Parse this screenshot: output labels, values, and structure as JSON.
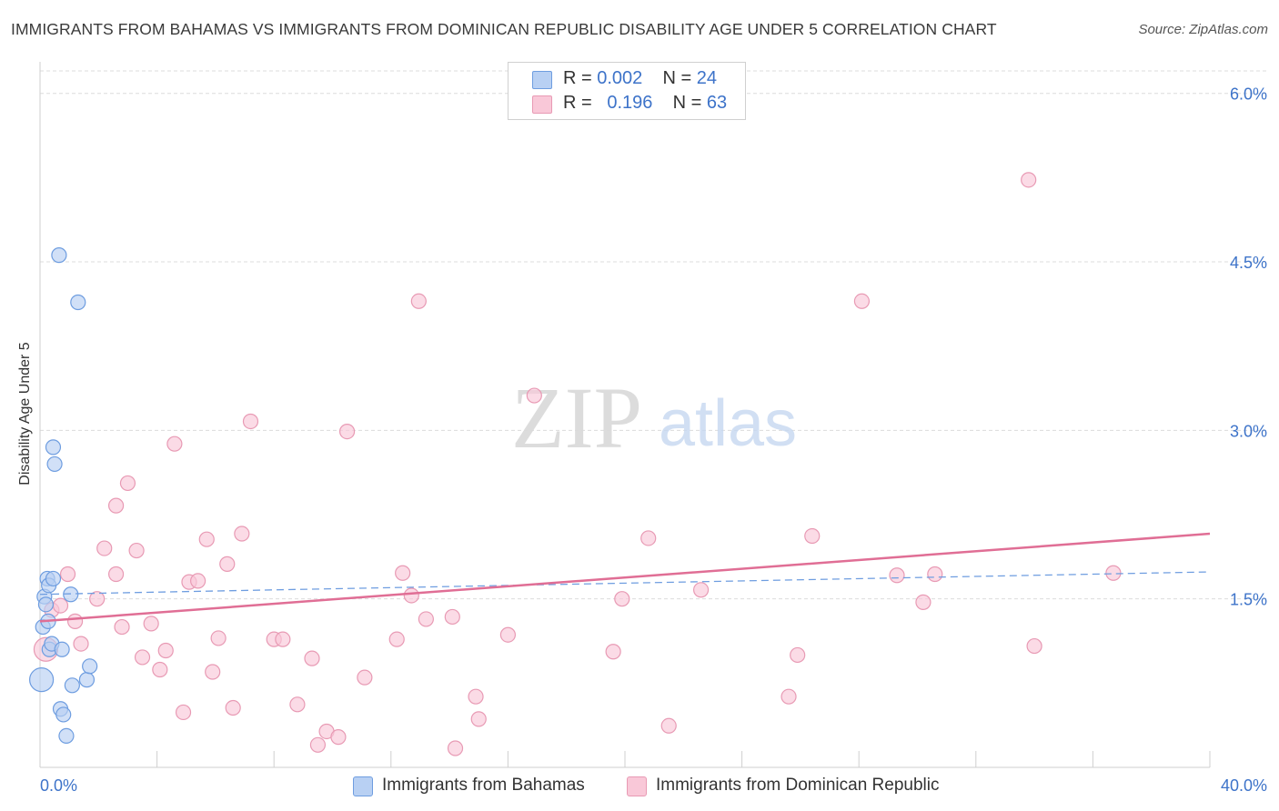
{
  "title": "IMMIGRANTS FROM BAHAMAS VS IMMIGRANTS FROM DOMINICAN REPUBLIC DISABILITY AGE UNDER 5 CORRELATION CHART",
  "source": "Source: ZipAtlas.com",
  "watermark": {
    "zip": "ZIP",
    "atlas": "atlas"
  },
  "legend": {
    "rows": [
      {
        "r_label": "R = ",
        "r_value": "0.002",
        "n_label": "N = ",
        "n_value": "24"
      },
      {
        "r_label": "R = ",
        "r_value": "0.196",
        "n_label": "N = ",
        "n_value": "63"
      }
    ]
  },
  "colors": {
    "bahamas_fill": "#b8d0f3",
    "bahamas_stroke": "#6e9de0",
    "bahamas_line": "#6e9de0",
    "dr_fill": "#f9c8d8",
    "dr_stroke": "#e89ab4",
    "dr_line": "#e06e95",
    "axis_text": "#3d73c9",
    "grid": "#dcdcdc"
  },
  "chart_data": {
    "type": "scatter",
    "title": "IMMIGRANTS FROM BAHAMAS VS IMMIGRANTS FROM DOMINICAN REPUBLIC DISABILITY AGE UNDER 5 CORRELATION CHART",
    "xlabel": "",
    "ylabel": "Disability Age Under 5",
    "xlim": [
      0,
      40
    ],
    "ylim": [
      0,
      6.2
    ],
    "x_tick_labels": [
      "0.0%",
      "40.0%"
    ],
    "y_ticks": [
      1.5,
      3.0,
      4.5,
      6.0
    ],
    "y_tick_labels": [
      "1.5%",
      "3.0%",
      "4.5%",
      "6.0%"
    ],
    "grid": true,
    "legend_position": "top-center",
    "series": [
      {
        "name": "Immigrants from Bahamas",
        "R": 0.002,
        "N": 24,
        "trend": {
          "x": [
            0,
            40
          ],
          "y": [
            1.54,
            1.74
          ],
          "style": "dashed"
        },
        "points": [
          {
            "x": 0.05,
            "y": 0.78,
            "big": true
          },
          {
            "x": 0.1,
            "y": 1.25
          },
          {
            "x": 0.15,
            "y": 1.52
          },
          {
            "x": 0.2,
            "y": 1.45
          },
          {
            "x": 0.25,
            "y": 1.68
          },
          {
            "x": 0.28,
            "y": 1.3
          },
          {
            "x": 0.3,
            "y": 1.62
          },
          {
            "x": 0.32,
            "y": 1.05
          },
          {
            "x": 0.4,
            "y": 1.1
          },
          {
            "x": 0.45,
            "y": 1.68
          },
          {
            "x": 0.45,
            "y": 2.85
          },
          {
            "x": 0.5,
            "y": 2.7
          },
          {
            "x": 0.65,
            "y": 4.56
          },
          {
            "x": 0.7,
            "y": 0.52
          },
          {
            "x": 0.75,
            "y": 1.05
          },
          {
            "x": 0.8,
            "y": 0.47
          },
          {
            "x": 0.9,
            "y": 0.28
          },
          {
            "x": 1.1,
            "y": 0.73
          },
          {
            "x": 1.05,
            "y": 1.54
          },
          {
            "x": 1.3,
            "y": 4.14
          },
          {
            "x": 1.6,
            "y": 0.78
          },
          {
            "x": 1.7,
            "y": 0.9
          }
        ]
      },
      {
        "name": "Immigrants from Dominican Republic",
        "R": 0.196,
        "N": 63,
        "trend": {
          "x": [
            0,
            40
          ],
          "y": [
            1.3,
            2.08
          ],
          "style": "solid"
        },
        "points": [
          {
            "x": 0.2,
            "y": 1.05,
            "big": true
          },
          {
            "x": 0.4,
            "y": 1.4
          },
          {
            "x": 0.7,
            "y": 1.44
          },
          {
            "x": 0.95,
            "y": 1.72
          },
          {
            "x": 1.2,
            "y": 1.3
          },
          {
            "x": 1.4,
            "y": 1.1
          },
          {
            "x": 1.95,
            "y": 1.5
          },
          {
            "x": 2.2,
            "y": 1.95
          },
          {
            "x": 2.6,
            "y": 1.72
          },
          {
            "x": 2.6,
            "y": 2.33
          },
          {
            "x": 2.8,
            "y": 1.25
          },
          {
            "x": 3.0,
            "y": 2.53
          },
          {
            "x": 3.3,
            "y": 1.93
          },
          {
            "x": 3.5,
            "y": 0.98
          },
          {
            "x": 3.8,
            "y": 1.28
          },
          {
            "x": 4.1,
            "y": 0.87
          },
          {
            "x": 4.3,
            "y": 1.04
          },
          {
            "x": 4.6,
            "y": 2.88
          },
          {
            "x": 4.9,
            "y": 0.49
          },
          {
            "x": 5.1,
            "y": 1.65
          },
          {
            "x": 5.4,
            "y": 1.66
          },
          {
            "x": 5.7,
            "y": 2.03
          },
          {
            "x": 5.9,
            "y": 0.85
          },
          {
            "x": 6.1,
            "y": 1.15
          },
          {
            "x": 6.4,
            "y": 1.81
          },
          {
            "x": 6.6,
            "y": 0.53
          },
          {
            "x": 6.9,
            "y": 2.08
          },
          {
            "x": 7.2,
            "y": 3.08
          },
          {
            "x": 8.0,
            "y": 1.14
          },
          {
            "x": 8.3,
            "y": 1.14
          },
          {
            "x": 8.8,
            "y": 0.56
          },
          {
            "x": 9.3,
            "y": 0.97
          },
          {
            "x": 9.5,
            "y": 0.2
          },
          {
            "x": 9.8,
            "y": 0.32
          },
          {
            "x": 10.2,
            "y": 0.27
          },
          {
            "x": 10.5,
            "y": 2.99
          },
          {
            "x": 11.1,
            "y": 0.8
          },
          {
            "x": 12.2,
            "y": 1.14
          },
          {
            "x": 12.4,
            "y": 1.73
          },
          {
            "x": 12.7,
            "y": 1.53
          },
          {
            "x": 12.95,
            "y": 4.15
          },
          {
            "x": 13.2,
            "y": 1.32
          },
          {
            "x": 14.2,
            "y": 0.17
          },
          {
            "x": 14.1,
            "y": 1.34
          },
          {
            "x": 14.9,
            "y": 0.63
          },
          {
            "x": 15.0,
            "y": 0.43
          },
          {
            "x": 16.0,
            "y": 1.18
          },
          {
            "x": 16.9,
            "y": 3.31
          },
          {
            "x": 19.6,
            "y": 1.03
          },
          {
            "x": 19.9,
            "y": 1.5
          },
          {
            "x": 20.8,
            "y": 2.04
          },
          {
            "x": 21.5,
            "y": 0.37
          },
          {
            "x": 22.6,
            "y": 1.58
          },
          {
            "x": 25.6,
            "y": 0.63
          },
          {
            "x": 25.9,
            "y": 1.0
          },
          {
            "x": 26.4,
            "y": 2.06
          },
          {
            "x": 28.1,
            "y": 4.15
          },
          {
            "x": 29.3,
            "y": 1.71
          },
          {
            "x": 30.2,
            "y": 1.47
          },
          {
            "x": 30.6,
            "y": 1.72
          },
          {
            "x": 33.8,
            "y": 5.23
          },
          {
            "x": 34.0,
            "y": 1.08
          },
          {
            "x": 36.7,
            "y": 1.73
          }
        ]
      }
    ]
  }
}
